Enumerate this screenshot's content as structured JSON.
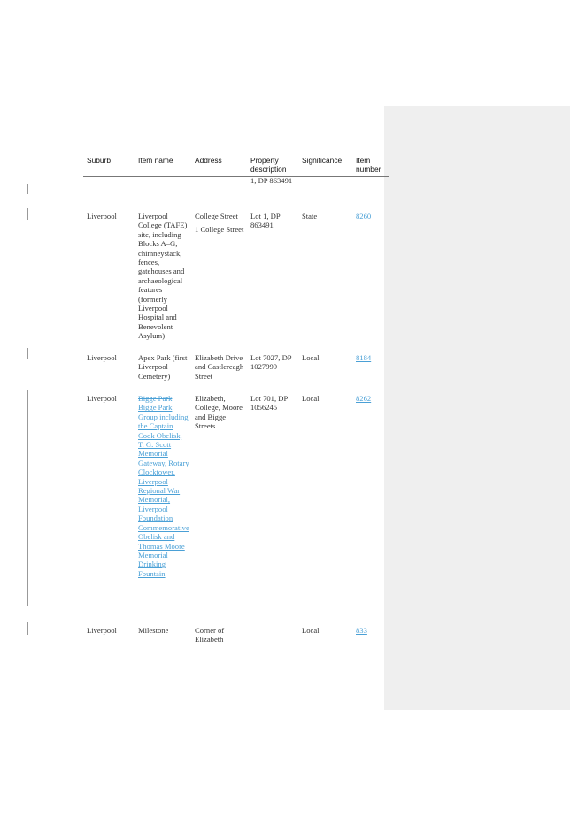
{
  "headers": {
    "suburb": "Suburb",
    "item_name": "Item name",
    "address": "Address",
    "property": "Property description",
    "significance": "Significance",
    "item_number": "Item number"
  },
  "continuation": {
    "property": "1, DP 863491"
  },
  "rows": [
    {
      "suburb": "Liverpool",
      "item_name": "Liverpool College (TAFE) site, including Blocks A–G, chimneystack, fences, gatehouses and archaeological features (formerly Liverpool Hospital and Benevolent Asylum)",
      "address_line1": "College Street",
      "address_line2": "1 College Street",
      "property": "Lot 1, DP 863491",
      "significance": "State",
      "item_number": "8260"
    },
    {
      "suburb": "Liverpool",
      "item_name": "Apex Park (first Liverpool Cemetery)",
      "address": "Elizabeth Drive and Castlereagh Street",
      "property": "Lot 7027, DP 1027999",
      "significance": "Local",
      "item_number": "8184"
    },
    {
      "suburb": "Liverpool",
      "item_name_deleted": "Bigge Park",
      "item_name_inserted": "Bigge Park Group including the Captain Cook Obelisk, T. G. Scott Memorial Gateway, Rotary Clocktower, Liverpool Regional War Memorial, Liverpool Foundation Commemorative Obelisk and Thomas Moore Memorial Drinking Fountain",
      "address": "Elizabeth, College, Moore and Bigge Streets",
      "property": "Lot 701, DP 1056245",
      "significance": "Local",
      "item_number": "8262"
    },
    {
      "suburb": "Liverpool",
      "item_name": "Milestone",
      "address": "Corner of Elizabeth",
      "property": "",
      "significance": "Local",
      "item_number": "833"
    }
  ]
}
